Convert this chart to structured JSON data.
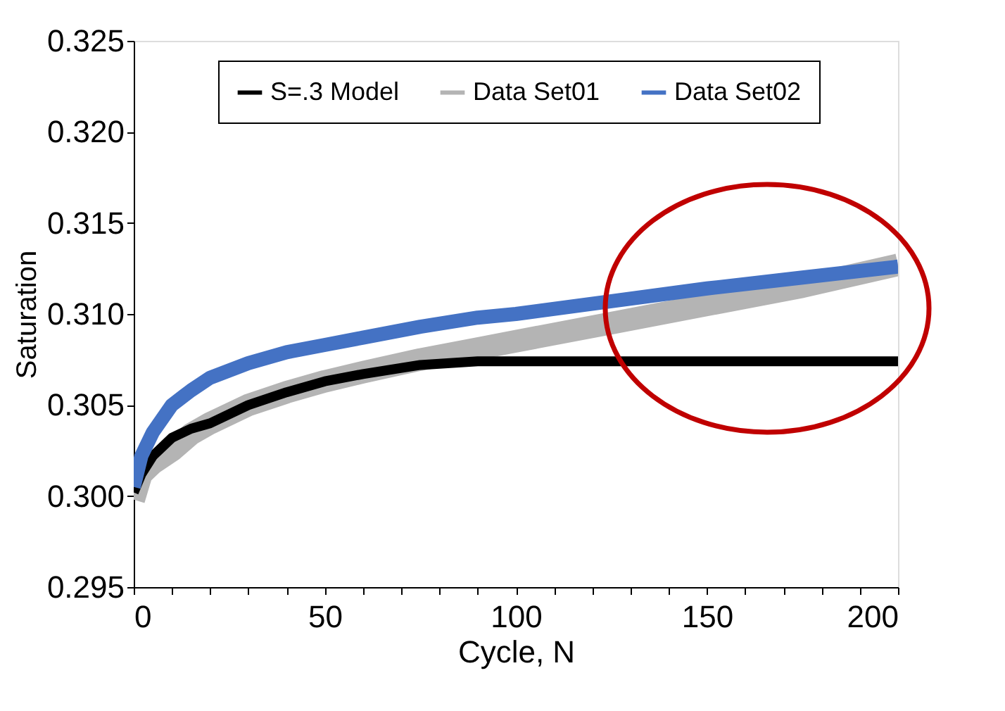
{
  "chart_data": {
    "type": "line",
    "xlabel": "Cycle, N",
    "ylabel": "Saturation",
    "x": [
      0,
      2,
      5,
      10,
      15,
      20,
      30,
      40,
      50,
      60,
      75,
      90,
      100,
      125,
      150,
      175,
      200
    ],
    "series": [
      {
        "name": "S=.3 Model",
        "color": "#000000",
        "values": [
          0.3002,
          0.3012,
          0.3022,
          0.3032,
          0.3037,
          0.304,
          0.305,
          0.3057,
          0.3063,
          0.3067,
          0.3072,
          0.3074,
          0.3074,
          0.3074,
          0.3074,
          0.3074,
          0.3074
        ]
      },
      {
        "name": "Data Set01",
        "color": "#b4b4b4",
        "values": [
          0.2998,
          0.3012,
          0.3018,
          0.3025,
          0.3034,
          0.304,
          0.305,
          0.3057,
          0.3063,
          0.3068,
          0.3075,
          0.3081,
          0.3085,
          0.3095,
          0.3105,
          0.3115,
          0.3127
        ]
      },
      {
        "name": "Data Set02",
        "color": "#4472c4",
        "values": [
          0.3005,
          0.3022,
          0.3035,
          0.305,
          0.3058,
          0.3065,
          0.3073,
          0.3079,
          0.3083,
          0.3087,
          0.3093,
          0.3098,
          0.31,
          0.3107,
          0.3114,
          0.312,
          0.3126
        ]
      }
    ],
    "xlim": [
      0,
      200
    ],
    "xticks": [
      0,
      {
        "value": 10,
        "label": null
      },
      {
        "value": 20,
        "label": null
      },
      {
        "value": 30,
        "label": null
      },
      {
        "value": 40,
        "label": null
      },
      50,
      {
        "value": 60,
        "label": null
      },
      {
        "value": 70,
        "label": null
      },
      {
        "value": 80,
        "label": null
      },
      {
        "value": 90,
        "label": null
      },
      100,
      {
        "value": 110,
        "label": null
      },
      {
        "value": 120,
        "label": null
      },
      {
        "value": 130,
        "label": null
      },
      {
        "value": 140,
        "label": null
      },
      150,
      {
        "value": 160,
        "label": null
      },
      {
        "value": 170,
        "label": null
      },
      {
        "value": 180,
        "label": null
      },
      {
        "value": 190,
        "label": null
      },
      200
    ],
    "ylim": [
      0.295,
      0.325
    ],
    "yticks": [
      {
        "value": 0.295,
        "label": "0.295"
      },
      {
        "value": 0.3,
        "label": "0.300"
      },
      {
        "value": 0.305,
        "label": "0.305"
      },
      {
        "value": 0.31,
        "label": "0.310"
      },
      {
        "value": 0.315,
        "label": "0.315"
      },
      {
        "value": 0.32,
        "label": "0.320"
      },
      {
        "value": 0.325,
        "label": "0.325"
      }
    ],
    "grid": false,
    "legend": "top",
    "marker": "none",
    "line_style": "solid"
  }
}
